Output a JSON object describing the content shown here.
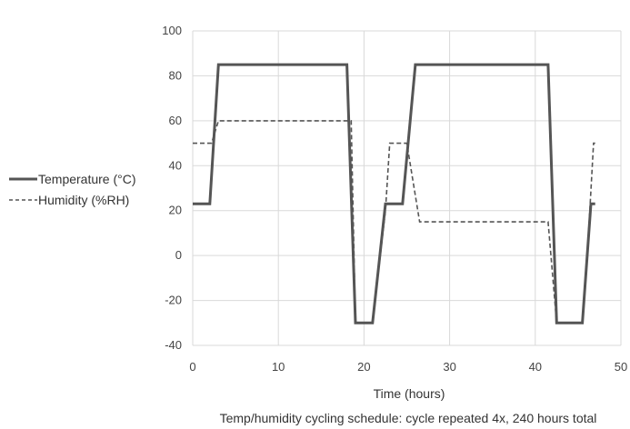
{
  "chart_data": {
    "type": "line",
    "title": "",
    "xlabel": "Time (hours)",
    "ylabel": "",
    "caption": "Temp/humidity cycling schedule: cycle repeated 4x, 240 hours total",
    "xlim": [
      0,
      50
    ],
    "ylim": [
      -40,
      100
    ],
    "x_ticks": [
      "0",
      "10",
      "20",
      "30",
      "40",
      "50"
    ],
    "y_ticks": [
      "100",
      "80",
      "60",
      "40",
      "20",
      "0",
      "-20",
      "-40"
    ],
    "grid": true,
    "legend_position": "left",
    "series": [
      {
        "name": "Temperature (°C)",
        "style": "solid",
        "color": "#555555",
        "points": [
          [
            0,
            23
          ],
          [
            2,
            23
          ],
          [
            3,
            85
          ],
          [
            18,
            85
          ],
          [
            19,
            -30
          ],
          [
            21,
            -30
          ],
          [
            22.5,
            23
          ],
          [
            24.5,
            23
          ],
          [
            26,
            85
          ],
          [
            41.5,
            85
          ],
          [
            42.5,
            -30
          ],
          [
            45.5,
            -30
          ],
          [
            46.5,
            23
          ],
          [
            47,
            23
          ]
        ]
      },
      {
        "name": "Humidity (%RH)",
        "style": "dashed",
        "color": "#555555",
        "points": [
          [
            0,
            50
          ],
          [
            2.2,
            50
          ],
          [
            3,
            60
          ],
          [
            18.5,
            60
          ],
          [
            19,
            -30
          ],
          [
            21,
            -30
          ],
          [
            22.5,
            20
          ],
          [
            23,
            50
          ],
          [
            25,
            50
          ],
          [
            26.5,
            15
          ],
          [
            41.5,
            15
          ],
          [
            42.5,
            -30
          ],
          [
            45.5,
            -30
          ],
          [
            46.3,
            15
          ],
          [
            46.8,
            50
          ],
          [
            47,
            50
          ]
        ]
      }
    ]
  }
}
